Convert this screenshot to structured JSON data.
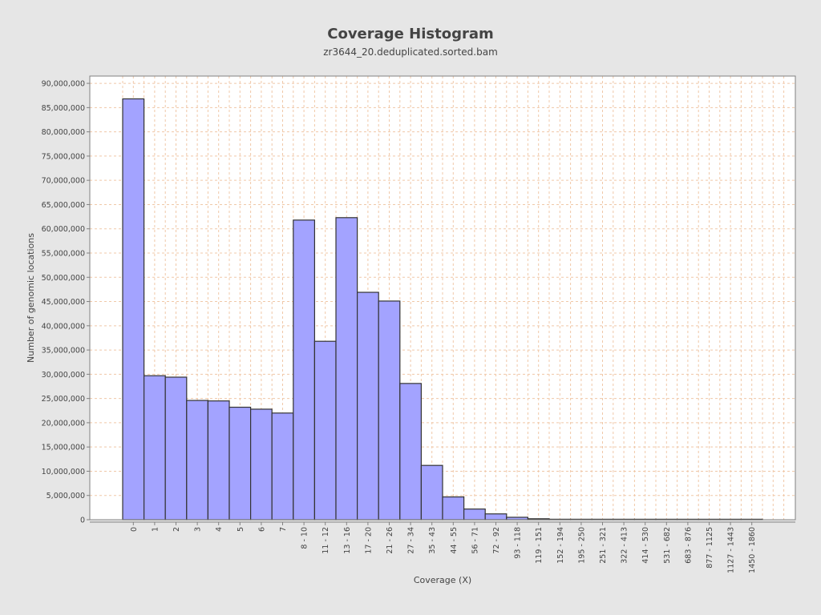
{
  "chart_data": {
    "type": "bar",
    "title": "Coverage Histogram",
    "subtitle": "zr3644_20.deduplicated.sorted.bam",
    "xlabel": "Coverage (X)",
    "ylabel": "Number of genomic locations",
    "categories": [
      "0",
      "1",
      "2",
      "3",
      "4",
      "5",
      "6",
      "7",
      "8 - 10",
      "11 - 12",
      "13 - 16",
      "17 - 20",
      "21 - 26",
      "27 - 34",
      "35 - 43",
      "44 - 55",
      "56 - 71",
      "72 - 92",
      "93 - 118",
      "119 - 151",
      "152 - 194",
      "195 - 250",
      "251 - 321",
      "322 - 413",
      "414 - 530",
      "531 - 682",
      "683 - 876",
      "877 - 1125",
      "1127 - 1443",
      "1450 - 1860"
    ],
    "values": [
      86800000,
      29700000,
      29400000,
      24600000,
      24500000,
      23200000,
      22800000,
      22000000,
      61800000,
      36800000,
      62300000,
      46900000,
      45100000,
      28100000,
      11200000,
      4700000,
      2200000,
      1200000,
      500000,
      200000,
      100000,
      80000,
      40000,
      30000,
      20000,
      15000,
      10000,
      8000,
      5000,
      3000
    ],
    "ylim": [
      0,
      91500000
    ],
    "yticks": [
      0,
      5000000,
      10000000,
      15000000,
      20000000,
      25000000,
      30000000,
      35000000,
      40000000,
      45000000,
      50000000,
      55000000,
      60000000,
      65000000,
      70000000,
      75000000,
      80000000,
      85000000,
      90000000
    ],
    "grid": true,
    "bar_color": "#a3a3ff",
    "bar_edge_color": "#333333",
    "grid_color": "#f0c8a8",
    "plot_background": "#ffffff"
  }
}
